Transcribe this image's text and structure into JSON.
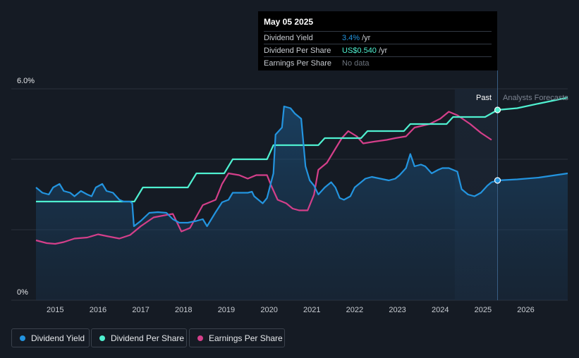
{
  "tooltip": {
    "date": "May 05 2025",
    "rows": [
      {
        "label": "Dividend Yield",
        "value": "3.4%",
        "unit": " /yr",
        "color": "#2394df"
      },
      {
        "label": "Dividend Per Share",
        "value": "US$0.540",
        "unit": " /yr",
        "color": "#4ff0d0"
      },
      {
        "label": "Earnings Per Share",
        "value": "No data",
        "unit": "",
        "color": "#6d747e"
      }
    ]
  },
  "legend": [
    {
      "label": "Dividend Yield",
      "color": "#2394df"
    },
    {
      "label": "Dividend Per Share",
      "color": "#4ff0d0"
    },
    {
      "label": "Earnings Per Share",
      "color": "#d43f8a"
    }
  ],
  "chart_data": {
    "type": "line",
    "y_top_label": "6.0%",
    "y_bottom_label": "0%",
    "ylim": [
      0,
      6.0
    ],
    "xlim": [
      2014.55,
      2026.98
    ],
    "x_ticks": [
      "2015",
      "2016",
      "2017",
      "2018",
      "2019",
      "2020",
      "2021",
      "2022",
      "2023",
      "2024",
      "2025",
      "2026"
    ],
    "past_label": "Past",
    "forecast_label": "Analysts Forecasts",
    "forecast_start": 2025.34,
    "shaded_region_start": 2024.34,
    "series": [
      {
        "name": "Dividend Yield",
        "color": "#2394df",
        "points": [
          [
            2014.55,
            3.2
          ],
          [
            2014.7,
            3.05
          ],
          [
            2014.85,
            3.0
          ],
          [
            2014.95,
            3.2
          ],
          [
            2015.1,
            3.3
          ],
          [
            2015.2,
            3.1
          ],
          [
            2015.35,
            3.05
          ],
          [
            2015.45,
            2.95
          ],
          [
            2015.6,
            3.1
          ],
          [
            2015.75,
            3.0
          ],
          [
            2015.85,
            2.95
          ],
          [
            2015.95,
            3.2
          ],
          [
            2016.1,
            3.3
          ],
          [
            2016.2,
            3.1
          ],
          [
            2016.35,
            3.05
          ],
          [
            2016.5,
            2.85
          ],
          [
            2016.6,
            2.8
          ],
          [
            2016.75,
            2.8
          ],
          [
            2016.8,
            2.75
          ],
          [
            2016.84,
            2.1
          ],
          [
            2017.0,
            2.25
          ],
          [
            2017.2,
            2.48
          ],
          [
            2017.4,
            2.5
          ],
          [
            2017.6,
            2.48
          ],
          [
            2017.75,
            2.3
          ],
          [
            2017.9,
            2.2
          ],
          [
            2018.1,
            2.2
          ],
          [
            2018.3,
            2.25
          ],
          [
            2018.45,
            2.3
          ],
          [
            2018.55,
            2.1
          ],
          [
            2018.75,
            2.5
          ],
          [
            2018.9,
            2.78
          ],
          [
            2019.05,
            2.85
          ],
          [
            2019.15,
            3.05
          ],
          [
            2019.3,
            3.05
          ],
          [
            2019.5,
            3.05
          ],
          [
            2019.6,
            3.08
          ],
          [
            2019.65,
            2.95
          ],
          [
            2019.75,
            2.85
          ],
          [
            2019.85,
            2.75
          ],
          [
            2019.95,
            2.9
          ],
          [
            2020.1,
            3.6
          ],
          [
            2020.15,
            4.7
          ],
          [
            2020.3,
            4.9
          ],
          [
            2020.35,
            5.5
          ],
          [
            2020.5,
            5.45
          ],
          [
            2020.6,
            5.3
          ],
          [
            2020.75,
            5.15
          ],
          [
            2020.85,
            3.8
          ],
          [
            2020.95,
            3.4
          ],
          [
            2021.05,
            3.25
          ],
          [
            2021.15,
            3.0
          ],
          [
            2021.3,
            3.2
          ],
          [
            2021.45,
            3.35
          ],
          [
            2021.55,
            3.2
          ],
          [
            2021.65,
            2.9
          ],
          [
            2021.75,
            2.85
          ],
          [
            2021.9,
            2.95
          ],
          [
            2022.0,
            3.2
          ],
          [
            2022.25,
            3.45
          ],
          [
            2022.4,
            3.5
          ],
          [
            2022.6,
            3.45
          ],
          [
            2022.8,
            3.4
          ],
          [
            2022.95,
            3.45
          ],
          [
            2023.05,
            3.55
          ],
          [
            2023.2,
            3.75
          ],
          [
            2023.3,
            4.15
          ],
          [
            2023.4,
            3.8
          ],
          [
            2023.55,
            3.85
          ],
          [
            2023.65,
            3.8
          ],
          [
            2023.8,
            3.6
          ],
          [
            2023.95,
            3.7
          ],
          [
            2024.05,
            3.75
          ],
          [
            2024.2,
            3.75
          ],
          [
            2024.3,
            3.7
          ],
          [
            2024.4,
            3.65
          ],
          [
            2024.5,
            3.15
          ],
          [
            2024.65,
            3.0
          ],
          [
            2024.8,
            2.95
          ],
          [
            2024.95,
            3.05
          ],
          [
            2025.1,
            3.25
          ],
          [
            2025.2,
            3.35
          ],
          [
            2025.34,
            3.4
          ]
        ],
        "forecast": [
          [
            2025.34,
            3.4
          ],
          [
            2025.8,
            3.43
          ],
          [
            2026.3,
            3.48
          ],
          [
            2026.98,
            3.6
          ]
        ]
      },
      {
        "name": "Dividend Per Share",
        "color": "#4ff0d0",
        "points": [
          [
            2014.55,
            2.8
          ],
          [
            2016.85,
            2.8
          ],
          [
            2017.05,
            3.2
          ],
          [
            2018.1,
            3.2
          ],
          [
            2018.3,
            3.6
          ],
          [
            2018.95,
            3.6
          ],
          [
            2019.15,
            4.0
          ],
          [
            2019.95,
            4.0
          ],
          [
            2020.1,
            4.4
          ],
          [
            2021.15,
            4.4
          ],
          [
            2021.3,
            4.6
          ],
          [
            2022.15,
            4.6
          ],
          [
            2022.3,
            4.8
          ],
          [
            2023.15,
            4.8
          ],
          [
            2023.3,
            5.0
          ],
          [
            2024.15,
            5.0
          ],
          [
            2024.3,
            5.2
          ],
          [
            2025.05,
            5.2
          ],
          [
            2025.34,
            5.4
          ]
        ],
        "forecast": [
          [
            2025.34,
            5.4
          ],
          [
            2025.8,
            5.45
          ],
          [
            2026.3,
            5.58
          ],
          [
            2026.98,
            5.75
          ]
        ]
      },
      {
        "name": "Earnings Per Share",
        "color": "#d43f8a",
        "points": [
          [
            2014.55,
            1.7
          ],
          [
            2014.8,
            1.62
          ],
          [
            2015.0,
            1.6
          ],
          [
            2015.2,
            1.65
          ],
          [
            2015.45,
            1.75
          ],
          [
            2015.75,
            1.78
          ],
          [
            2016.0,
            1.87
          ],
          [
            2016.2,
            1.82
          ],
          [
            2016.5,
            1.75
          ],
          [
            2016.75,
            1.85
          ],
          [
            2017.0,
            2.1
          ],
          [
            2017.3,
            2.35
          ],
          [
            2017.6,
            2.42
          ],
          [
            2017.75,
            2.45
          ],
          [
            2017.95,
            1.95
          ],
          [
            2018.15,
            2.05
          ],
          [
            2018.45,
            2.7
          ],
          [
            2018.75,
            2.85
          ],
          [
            2018.9,
            3.3
          ],
          [
            2019.05,
            3.6
          ],
          [
            2019.3,
            3.55
          ],
          [
            2019.5,
            3.45
          ],
          [
            2019.7,
            3.55
          ],
          [
            2019.95,
            3.55
          ],
          [
            2020.05,
            3.25
          ],
          [
            2020.2,
            2.85
          ],
          [
            2020.4,
            2.75
          ],
          [
            2020.55,
            2.6
          ],
          [
            2020.7,
            2.55
          ],
          [
            2020.9,
            2.55
          ],
          [
            2021.05,
            3.0
          ],
          [
            2021.15,
            3.7
          ],
          [
            2021.35,
            3.9
          ],
          [
            2021.55,
            4.3
          ],
          [
            2021.7,
            4.6
          ],
          [
            2021.85,
            4.8
          ],
          [
            2022.05,
            4.65
          ],
          [
            2022.2,
            4.45
          ],
          [
            2022.45,
            4.5
          ],
          [
            2022.75,
            4.55
          ],
          [
            2022.95,
            4.6
          ],
          [
            2023.2,
            4.65
          ],
          [
            2023.4,
            4.9
          ],
          [
            2023.75,
            5.0
          ],
          [
            2024.0,
            5.15
          ],
          [
            2024.2,
            5.35
          ],
          [
            2024.4,
            5.25
          ],
          [
            2024.7,
            5.0
          ],
          [
            2024.95,
            4.75
          ],
          [
            2025.2,
            4.55
          ]
        ]
      }
    ]
  }
}
